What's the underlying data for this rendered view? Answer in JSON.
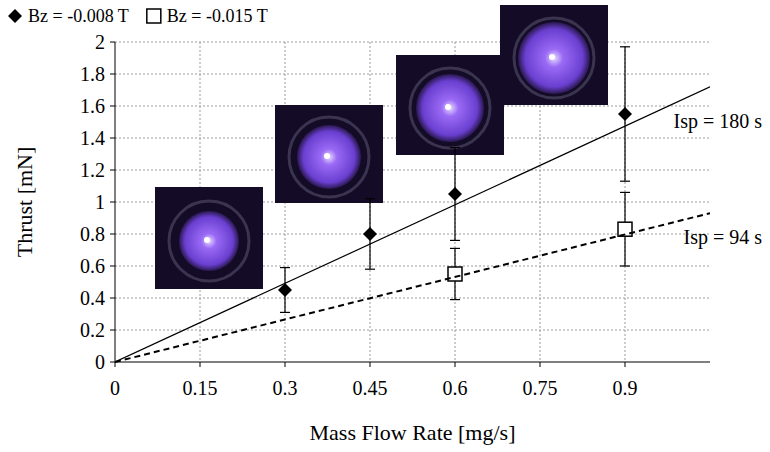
{
  "chart_data": {
    "type": "scatter",
    "x_label": "Mass Flow Rate [mg/s]",
    "y_label": "Thrust [mN]",
    "xlim": [
      0,
      1.05
    ],
    "xticks": [
      0,
      0.15,
      0.3,
      0.45,
      0.6,
      0.75,
      0.9
    ],
    "ylim": [
      0,
      2
    ],
    "yticks": [
      0,
      0.2,
      0.4,
      0.6,
      0.8,
      1,
      1.2,
      1.4,
      1.6,
      1.8,
      2
    ],
    "grid": true,
    "legend": "top-left",
    "series": [
      {
        "name": "Bz = -0.008 T",
        "type": "scatter",
        "marker": "diamond",
        "color": "#000000",
        "x": [
          0.3,
          0.45,
          0.6,
          0.9
        ],
        "values": [
          0.45,
          0.8,
          1.05,
          1.55
        ],
        "errors": [
          0.14,
          0.22,
          0.29,
          0.42
        ]
      },
      {
        "name": "Bz = -0.015 T",
        "type": "scatter",
        "marker": "square",
        "color": "#000000",
        "x": [
          0.6,
          0.9
        ],
        "values": [
          0.55,
          0.83
        ],
        "errors": [
          0.16,
          0.23
        ]
      },
      {
        "name": "Isp = 180 s",
        "type": "line",
        "line_style": "solid",
        "color": "#000000",
        "x": [
          0,
          1.05
        ],
        "values": [
          0,
          1.72
        ]
      },
      {
        "name": "Isp = 94 s",
        "type": "line",
        "line_style": "dashed",
        "color": "#000000",
        "x": [
          0,
          1.05
        ],
        "values": [
          0,
          0.93
        ]
      }
    ]
  }
}
